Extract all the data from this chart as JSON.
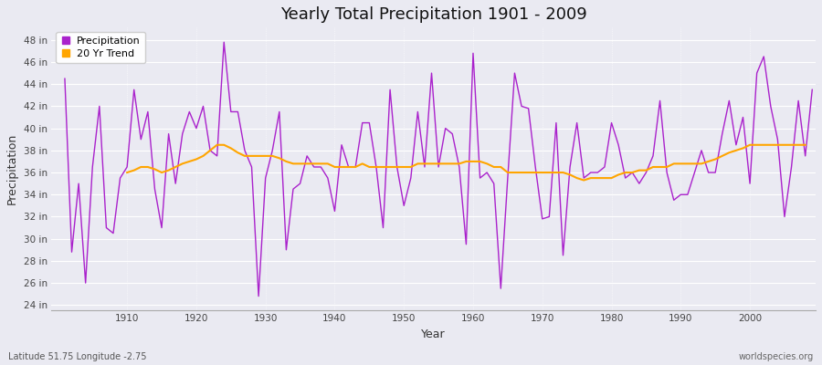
{
  "title": "Yearly Total Precipitation 1901 - 2009",
  "xlabel": "Year",
  "ylabel": "Precipitation",
  "footer_left": "Latitude 51.75 Longitude -2.75",
  "footer_right": "worldspecies.org",
  "ylim": [
    23.5,
    49.2
  ],
  "yticks": [
    24,
    26,
    28,
    30,
    32,
    34,
    36,
    38,
    40,
    42,
    44,
    46,
    48
  ],
  "ytick_labels": [
    "24 in",
    "26 in",
    "28 in",
    "30 in",
    "32 in",
    "34 in",
    "36 in",
    "38 in",
    "40 in",
    "42 in",
    "44 in",
    "46 in",
    "48 in"
  ],
  "xlim": [
    1899.0,
    2009.5
  ],
  "xticks": [
    1910,
    1920,
    1930,
    1940,
    1950,
    1960,
    1970,
    1980,
    1990,
    2000
  ],
  "precip_color": "#aa22cc",
  "trend_color": "#FFA500",
  "background_color": "#eaeaf2",
  "legend_entries": [
    "Precipitation",
    "20 Yr Trend"
  ],
  "years": [
    1901,
    1902,
    1903,
    1904,
    1905,
    1906,
    1907,
    1908,
    1909,
    1910,
    1911,
    1912,
    1913,
    1914,
    1915,
    1916,
    1917,
    1918,
    1919,
    1920,
    1921,
    1922,
    1923,
    1924,
    1925,
    1926,
    1927,
    1928,
    1929,
    1930,
    1931,
    1932,
    1933,
    1934,
    1935,
    1936,
    1937,
    1938,
    1939,
    1940,
    1941,
    1942,
    1943,
    1944,
    1945,
    1946,
    1947,
    1948,
    1949,
    1950,
    1951,
    1952,
    1953,
    1954,
    1955,
    1956,
    1957,
    1958,
    1959,
    1960,
    1961,
    1962,
    1963,
    1964,
    1965,
    1966,
    1967,
    1968,
    1969,
    1970,
    1971,
    1972,
    1973,
    1974,
    1975,
    1976,
    1977,
    1978,
    1979,
    1980,
    1981,
    1982,
    1983,
    1984,
    1985,
    1986,
    1987,
    1988,
    1989,
    1990,
    1991,
    1992,
    1993,
    1994,
    1995,
    1996,
    1997,
    1998,
    1999,
    2000,
    2001,
    2002,
    2003,
    2004,
    2005,
    2006,
    2007,
    2008,
    2009
  ],
  "precip": [
    44.5,
    28.8,
    35.0,
    26.0,
    36.5,
    42.0,
    31.0,
    30.5,
    35.5,
    36.5,
    43.5,
    39.0,
    41.5,
    34.5,
    31.0,
    39.5,
    35.0,
    39.5,
    41.5,
    40.0,
    42.0,
    38.0,
    37.5,
    47.8,
    41.5,
    41.5,
    38.0,
    36.5,
    24.8,
    35.5,
    38.0,
    41.5,
    29.0,
    34.5,
    35.0,
    37.5,
    36.5,
    36.5,
    35.5,
    32.5,
    38.5,
    36.5,
    36.5,
    40.5,
    40.5,
    36.5,
    31.0,
    43.5,
    36.5,
    33.0,
    35.5,
    41.5,
    36.5,
    45.0,
    36.5,
    40.0,
    39.5,
    36.5,
    29.5,
    46.8,
    35.5,
    36.0,
    35.0,
    25.5,
    35.5,
    45.0,
    42.0,
    41.8,
    36.5,
    31.8,
    32.0,
    40.5,
    28.5,
    36.5,
    40.5,
    35.5,
    36.0,
    36.0,
    36.5,
    40.5,
    38.5,
    35.5,
    36.0,
    35.0,
    36.0,
    37.5,
    42.5,
    36.0,
    33.5,
    34.0,
    34.0,
    36.0,
    38.0,
    36.0,
    36.0,
    39.5,
    42.5,
    38.5,
    41.0,
    35.0,
    45.0,
    46.5,
    42.0,
    39.0,
    32.0,
    36.5,
    42.5,
    37.5,
    43.5
  ],
  "trend_start_year": 1910,
  "trend": [
    36.0,
    36.2,
    36.5,
    36.5,
    36.3,
    36.0,
    36.2,
    36.5,
    36.8,
    37.0,
    37.2,
    37.5,
    38.0,
    38.5,
    38.5,
    38.2,
    37.8,
    37.5,
    37.5,
    37.5,
    37.5,
    37.5,
    37.3,
    37.0,
    36.8,
    36.8,
    36.8,
    36.8,
    36.8,
    36.8,
    36.5,
    36.5,
    36.5,
    36.5,
    36.8,
    36.5,
    36.5,
    36.5,
    36.5,
    36.5,
    36.5,
    36.5,
    36.8,
    36.8,
    36.8,
    36.8,
    36.8,
    36.8,
    36.8,
    37.0,
    37.0,
    37.0,
    36.8,
    36.5,
    36.5,
    36.0,
    36.0,
    36.0,
    36.0,
    36.0,
    36.0,
    36.0,
    36.0,
    36.0,
    35.8,
    35.5,
    35.3,
    35.5,
    35.5,
    35.5,
    35.5,
    35.8,
    36.0,
    36.0,
    36.2,
    36.2,
    36.5,
    36.5,
    36.5,
    36.8,
    36.8,
    36.8,
    36.8,
    36.8,
    37.0,
    37.2,
    37.5,
    37.8,
    38.0,
    38.2,
    38.5,
    38.5,
    38.5,
    38.5,
    38.5,
    38.5,
    38.5,
    38.5,
    38.5
  ]
}
